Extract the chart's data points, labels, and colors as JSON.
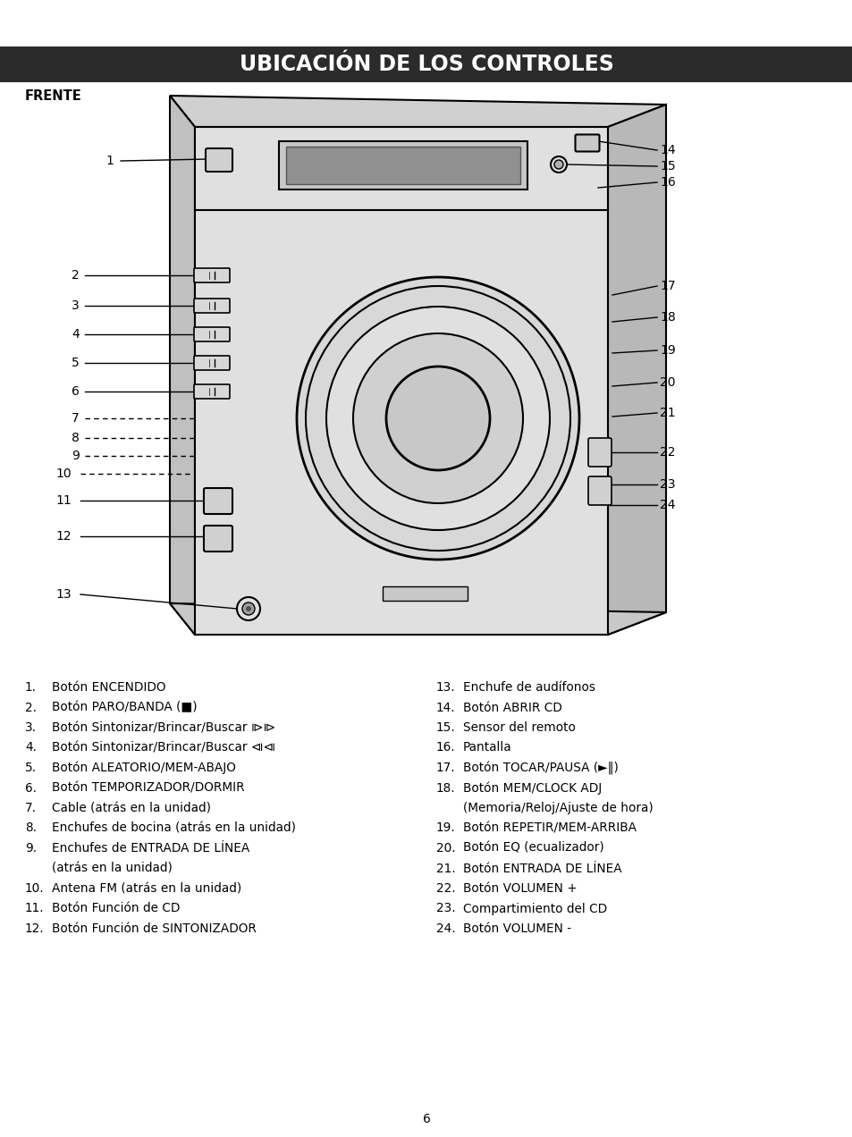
{
  "title": "UBICACIÓN DE LOS CONTROLES",
  "title_bg": "#2b2b2b",
  "title_color": "#ffffff",
  "section_label": "FRENTE",
  "page_number": "6",
  "background_color": "#ffffff",
  "left_items": [
    {
      "num": "1.",
      "text": "Botón ENCENDIDO",
      "bold": false
    },
    {
      "num": "2.",
      "text": "Botón PARO/BANDA (■)",
      "bold": false
    },
    {
      "num": "3.",
      "text": "Botón Sintonizar/Brincar/Buscar ⧐⧐",
      "bold": false
    },
    {
      "num": "4.",
      "text": "Botón Sintonizar/Brincar/Buscar ⧏⧏",
      "bold": false
    },
    {
      "num": "5.",
      "text": "Botón ALEATORIO/MEM-ABAJO",
      "bold": false
    },
    {
      "num": "6.",
      "text": "Botón TEMPORIZADOR/DORMIR",
      "bold": false
    },
    {
      "num": "7.",
      "text": "Cable (atrás en la unidad)",
      "bold": false
    },
    {
      "num": "8.",
      "text": "Enchufes de bocina (atrás en la unidad)",
      "bold": false
    },
    {
      "num": "9.",
      "text": "Enchufes de ENTRADA DE LÍNEA",
      "bold": false
    },
    {
      "num": "",
      "text": "(atrás en la unidad)",
      "bold": false
    },
    {
      "num": "10.",
      "text": "Antena FM (atrás en la unidad)",
      "bold": false
    },
    {
      "num": "11.",
      "text": "Botón Función de CD",
      "bold": false
    },
    {
      "num": "12.",
      "text": "Botón Función de SINTONIZADOR",
      "bold": false
    }
  ],
  "right_items": [
    {
      "num": "13.",
      "text": "Enchufe de audífonos",
      "bold": false
    },
    {
      "num": "14.",
      "text": "Botón ABRIR CD",
      "bold": false
    },
    {
      "num": "15.",
      "text": "Sensor del remoto",
      "bold": false
    },
    {
      "num": "16.",
      "text": "Pantalla",
      "bold": false
    },
    {
      "num": "17.",
      "text": "Botón TOCAR/PAUSA (►‖)",
      "bold": false
    },
    {
      "num": "18.",
      "text": "Botón MEM/CLOCK ADJ",
      "bold": false
    },
    {
      "num": "",
      "text": "(Memoria/Reloj/Ajuste de hora)",
      "bold": false
    },
    {
      "num": "19.",
      "text": "Botón REPETIR/MEM-ARRIBA",
      "bold": false
    },
    {
      "num": "20.",
      "text": "Botón EQ (ecualizador)",
      "bold": false
    },
    {
      "num": "21.",
      "text": "Botón ENTRADA DE LÍNEA",
      "bold": false
    },
    {
      "num": "22.",
      "text": "Botón VOLUMEN +",
      "bold": false
    },
    {
      "num": "23.",
      "text": "Compartimiento del CD",
      "bold": false
    },
    {
      "num": "24.",
      "text": "Botón VOLUMEN -",
      "bold": false
    }
  ]
}
